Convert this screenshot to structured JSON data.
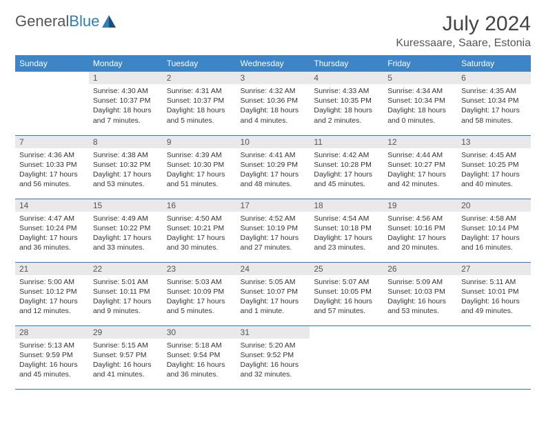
{
  "brand": {
    "part1": "General",
    "part2": "Blue"
  },
  "title": "July 2024",
  "location": "Kuressaare, Saare, Estonia",
  "colors": {
    "header_bg": "#3d85c6",
    "header_fg": "#ffffff",
    "daynum_bg": "#e9e9e9",
    "row_border": "#4a6f9b",
    "brand_gray": "#555555",
    "brand_blue": "#2c7fb8"
  },
  "weekdays": [
    "Sunday",
    "Monday",
    "Tuesday",
    "Wednesday",
    "Thursday",
    "Friday",
    "Saturday"
  ],
  "start_offset": 1,
  "days": [
    {
      "n": 1,
      "sunrise": "4:30 AM",
      "sunset": "10:37 PM",
      "dl": "18 hours and 7 minutes."
    },
    {
      "n": 2,
      "sunrise": "4:31 AM",
      "sunset": "10:37 PM",
      "dl": "18 hours and 5 minutes."
    },
    {
      "n": 3,
      "sunrise": "4:32 AM",
      "sunset": "10:36 PM",
      "dl": "18 hours and 4 minutes."
    },
    {
      "n": 4,
      "sunrise": "4:33 AM",
      "sunset": "10:35 PM",
      "dl": "18 hours and 2 minutes."
    },
    {
      "n": 5,
      "sunrise": "4:34 AM",
      "sunset": "10:34 PM",
      "dl": "18 hours and 0 minutes."
    },
    {
      "n": 6,
      "sunrise": "4:35 AM",
      "sunset": "10:34 PM",
      "dl": "17 hours and 58 minutes."
    },
    {
      "n": 7,
      "sunrise": "4:36 AM",
      "sunset": "10:33 PM",
      "dl": "17 hours and 56 minutes."
    },
    {
      "n": 8,
      "sunrise": "4:38 AM",
      "sunset": "10:32 PM",
      "dl": "17 hours and 53 minutes."
    },
    {
      "n": 9,
      "sunrise": "4:39 AM",
      "sunset": "10:30 PM",
      "dl": "17 hours and 51 minutes."
    },
    {
      "n": 10,
      "sunrise": "4:41 AM",
      "sunset": "10:29 PM",
      "dl": "17 hours and 48 minutes."
    },
    {
      "n": 11,
      "sunrise": "4:42 AM",
      "sunset": "10:28 PM",
      "dl": "17 hours and 45 minutes."
    },
    {
      "n": 12,
      "sunrise": "4:44 AM",
      "sunset": "10:27 PM",
      "dl": "17 hours and 42 minutes."
    },
    {
      "n": 13,
      "sunrise": "4:45 AM",
      "sunset": "10:25 PM",
      "dl": "17 hours and 40 minutes."
    },
    {
      "n": 14,
      "sunrise": "4:47 AM",
      "sunset": "10:24 PM",
      "dl": "17 hours and 36 minutes."
    },
    {
      "n": 15,
      "sunrise": "4:49 AM",
      "sunset": "10:22 PM",
      "dl": "17 hours and 33 minutes."
    },
    {
      "n": 16,
      "sunrise": "4:50 AM",
      "sunset": "10:21 PM",
      "dl": "17 hours and 30 minutes."
    },
    {
      "n": 17,
      "sunrise": "4:52 AM",
      "sunset": "10:19 PM",
      "dl": "17 hours and 27 minutes."
    },
    {
      "n": 18,
      "sunrise": "4:54 AM",
      "sunset": "10:18 PM",
      "dl": "17 hours and 23 minutes."
    },
    {
      "n": 19,
      "sunrise": "4:56 AM",
      "sunset": "10:16 PM",
      "dl": "17 hours and 20 minutes."
    },
    {
      "n": 20,
      "sunrise": "4:58 AM",
      "sunset": "10:14 PM",
      "dl": "17 hours and 16 minutes."
    },
    {
      "n": 21,
      "sunrise": "5:00 AM",
      "sunset": "10:12 PM",
      "dl": "17 hours and 12 minutes."
    },
    {
      "n": 22,
      "sunrise": "5:01 AM",
      "sunset": "10:11 PM",
      "dl": "17 hours and 9 minutes."
    },
    {
      "n": 23,
      "sunrise": "5:03 AM",
      "sunset": "10:09 PM",
      "dl": "17 hours and 5 minutes."
    },
    {
      "n": 24,
      "sunrise": "5:05 AM",
      "sunset": "10:07 PM",
      "dl": "17 hours and 1 minute."
    },
    {
      "n": 25,
      "sunrise": "5:07 AM",
      "sunset": "10:05 PM",
      "dl": "16 hours and 57 minutes."
    },
    {
      "n": 26,
      "sunrise": "5:09 AM",
      "sunset": "10:03 PM",
      "dl": "16 hours and 53 minutes."
    },
    {
      "n": 27,
      "sunrise": "5:11 AM",
      "sunset": "10:01 PM",
      "dl": "16 hours and 49 minutes."
    },
    {
      "n": 28,
      "sunrise": "5:13 AM",
      "sunset": "9:59 PM",
      "dl": "16 hours and 45 minutes."
    },
    {
      "n": 29,
      "sunrise": "5:15 AM",
      "sunset": "9:57 PM",
      "dl": "16 hours and 41 minutes."
    },
    {
      "n": 30,
      "sunrise": "5:18 AM",
      "sunset": "9:54 PM",
      "dl": "16 hours and 36 minutes."
    },
    {
      "n": 31,
      "sunrise": "5:20 AM",
      "sunset": "9:52 PM",
      "dl": "16 hours and 32 minutes."
    }
  ],
  "labels": {
    "sunrise": "Sunrise:",
    "sunset": "Sunset:",
    "daylight": "Daylight:"
  }
}
